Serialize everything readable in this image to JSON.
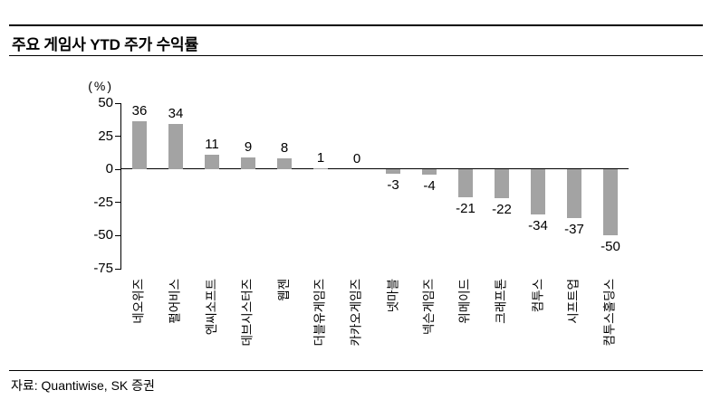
{
  "header": {
    "title": "주요 게임사 YTD 주가 수익률"
  },
  "chart_data": {
    "type": "bar",
    "title": "주요 게임사 YTD 주가 수익률",
    "unit_label": "(%)",
    "categories": [
      "네오위즈",
      "펄어비스",
      "엔씨소프트",
      "데브시스터즈",
      "웹젠",
      "더블유게임즈",
      "카카오게임즈",
      "넷마블",
      "넥슨게임즈",
      "위메이드",
      "크래프톤",
      "컴투스",
      "시프트업",
      "컴투스홀딩스"
    ],
    "values": [
      36,
      34,
      11,
      9,
      8,
      1,
      0,
      -3,
      -4,
      -21,
      -22,
      -34,
      -37,
      -50
    ],
    "yticks": [
      50,
      25,
      0,
      -25,
      -50,
      -75
    ],
    "ylim": [
      -75,
      50
    ],
    "grid": false,
    "legend": "none",
    "bar_color": "#a3a3a3",
    "axis_color": "#000000"
  },
  "footer": {
    "source": "자료: Quantiwise, SK 증권"
  }
}
